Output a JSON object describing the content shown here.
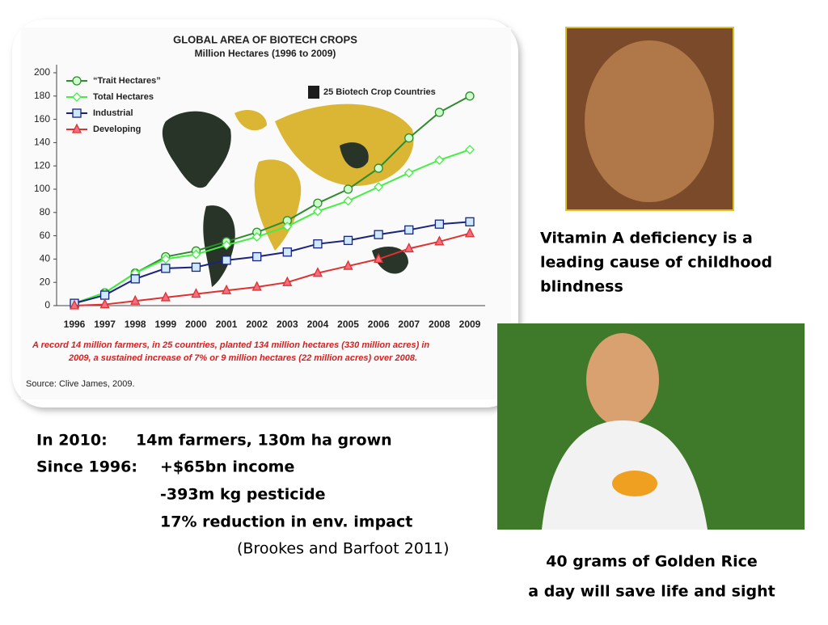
{
  "chart_data": {
    "type": "line",
    "title": "GLOBAL AREA OF BIOTECH CROPS",
    "subtitle": "Million Hectares (1996 to 2009)",
    "categories": [
      "1996",
      "1997",
      "1998",
      "1999",
      "2000",
      "2001",
      "2002",
      "2003",
      "2004",
      "2005",
      "2006",
      "2007",
      "2008",
      "2009"
    ],
    "series": [
      {
        "name": "“Trait Hectares”",
        "color": "#2e8b2e",
        "marker": "circle",
        "values": [
          2,
          11,
          28,
          42,
          47,
          55,
          63,
          73,
          88,
          100,
          118,
          144,
          166,
          180
        ]
      },
      {
        "name": "Total Hectares",
        "color": "#44ee44",
        "marker": "diamond",
        "values": [
          2,
          11,
          28,
          40,
          44,
          52,
          59,
          68,
          81,
          90,
          102,
          114,
          125,
          134
        ]
      },
      {
        "name": "Industrial",
        "color": "#1a237e",
        "marker": "square",
        "values": [
          2,
          9,
          23,
          32,
          33,
          39,
          42,
          46,
          53,
          56,
          61,
          65,
          70,
          72
        ]
      },
      {
        "name": "Developing",
        "color": "#e03030",
        "marker": "triangle",
        "values": [
          0,
          1,
          4,
          7,
          10,
          13,
          16,
          20,
          28,
          34,
          40,
          49,
          55,
          62
        ]
      }
    ],
    "ylim": [
      0,
      200
    ],
    "yticks": [
      0,
      20,
      40,
      60,
      80,
      100,
      120,
      140,
      160,
      180,
      200
    ],
    "grid": false,
    "map_legend": "25 Biotech Crop Countries",
    "note": [
      "A record 14 million farmers, in 25 countries, planted 134 million hectares (330 million acres) in",
      "2009, a sustained increase of 7% or 9 million hectares (22 million acres) over 2008."
    ],
    "source": "Source: Clive James, 2009."
  },
  "slide": {
    "stats": [
      {
        "label": "In 2010:",
        "text": "14m farmers, 130m ha grown"
      },
      {
        "label": "Since 1996:",
        "text": "+$65bn income"
      },
      {
        "text": "-393m kg pesticide"
      },
      {
        "text": "17% reduction in env. impact"
      }
    ],
    "citation": "(Brookes and Barfoot 2011)",
    "caption_top": [
      "Vitamin A deficiency is a",
      "leading cause of childhood",
      "blindness"
    ],
    "caption_bottom": [
      "40 grams of Golden Rice",
      "a day will save life and sight"
    ]
  }
}
